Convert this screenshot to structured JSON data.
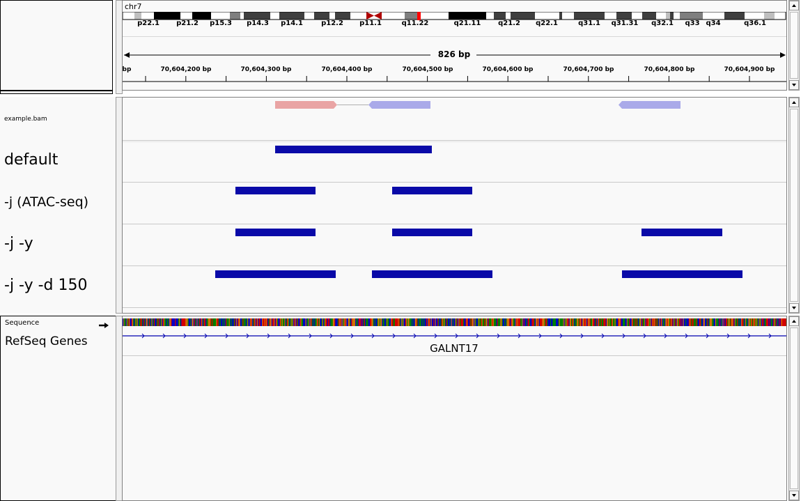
{
  "header": {
    "chromosome": "chr7",
    "span_label": "826 bp",
    "cytobands": [
      "p22.1",
      "p21.2",
      "p15.3",
      "p14.3",
      "p14.1",
      "p12.2",
      "p11.1",
      "q11.22",
      "q21.11",
      "q21.2",
      "q22.1",
      "q31.1",
      "q31.31",
      "q32.1",
      "q33",
      "q34",
      "q36.1"
    ],
    "ruler_ticks": [
      "bp",
      "70,604,200 bp",
      "70,604,300 bp",
      "70,604,400 bp",
      "70,604,500 bp",
      "70,604,600 bp",
      "70,604,700 bp",
      "70,604,800 bp",
      "70,604,900 bp"
    ]
  },
  "tracks": {
    "bam_name": "example.bam",
    "peak_tracks": [
      {
        "name": "default"
      },
      {
        "name": "-j (ATAC-seq)"
      },
      {
        "name": "-j -y"
      },
      {
        "name": "-j -y -d 150"
      }
    ],
    "sequence_name": "Sequence",
    "refseq_name": "RefSeq Genes",
    "gene_label": "GALNT17"
  },
  "colors": {
    "feature": "#0a0aa8",
    "read_forward": "#e9a4a4",
    "read_reverse": "#aaaae9",
    "centromere": "#b00000"
  },
  "icons": {
    "sequence_strand": "arrow-right-icon",
    "scroll_up": "triangle-up-icon",
    "scroll_down": "triangle-down-icon"
  }
}
